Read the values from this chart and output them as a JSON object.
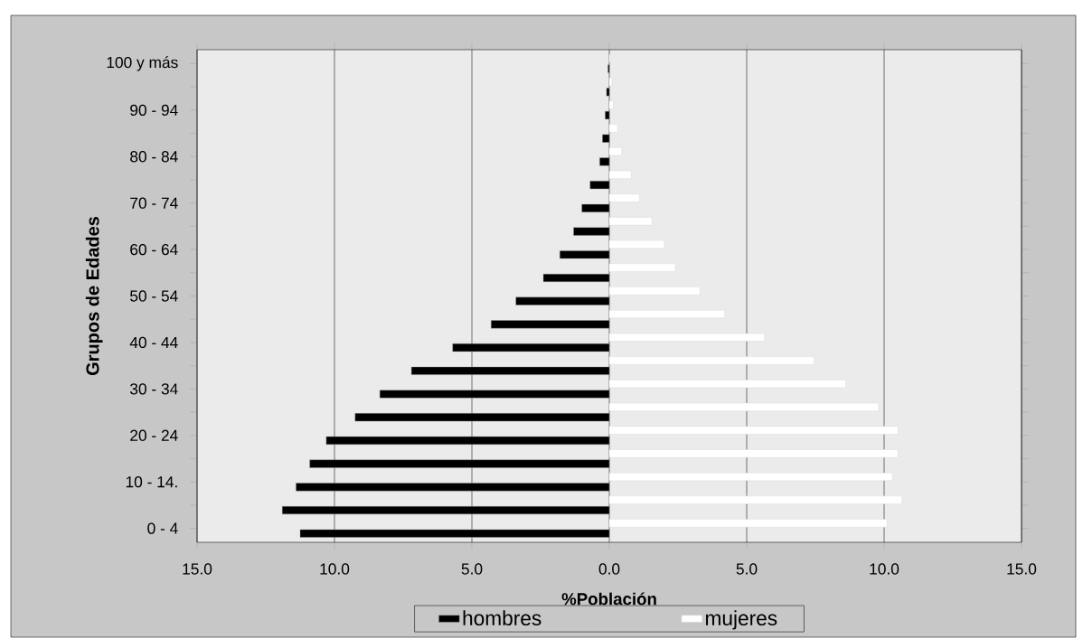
{
  "chart_data": {
    "type": "bar",
    "orientation": "horizontal",
    "xlabel": "%Población",
    "ylabel": "Grupos de Edades",
    "categories": [
      "100 y más",
      null,
      "90 - 94",
      null,
      "80 - 84",
      null,
      "70 - 74",
      null,
      "60 - 64",
      null,
      "50 - 54",
      null,
      "40 - 44",
      null,
      "30 - 34",
      null,
      "20 - 24",
      null,
      "10 - 14.",
      null,
      "0 - 4"
    ],
    "series": [
      {
        "name": "hombres",
        "color": "#000000",
        "values": [
          -0.05,
          -0.1,
          -0.15,
          -0.25,
          -0.35,
          -0.7,
          -1.0,
          -1.3,
          -1.8,
          -2.4,
          -3.4,
          -4.3,
          -5.7,
          -7.2,
          -8.35,
          -9.25,
          -10.3,
          -10.9,
          -11.4,
          -11.9,
          -11.25
        ]
      },
      {
        "name": "mujeres",
        "color": "#ffffff",
        "values": [
          0.05,
          0.1,
          0.15,
          0.3,
          0.45,
          0.8,
          1.1,
          1.55,
          2.0,
          2.4,
          3.3,
          4.2,
          5.65,
          7.45,
          8.6,
          9.8,
          10.5,
          10.5,
          10.3,
          10.65,
          10.1
        ]
      }
    ],
    "xlim": [
      -15,
      15
    ],
    "xticks": [
      {
        "value": -15,
        "label": "15.0"
      },
      {
        "value": -10,
        "label": "10.0"
      },
      {
        "value": -5,
        "label": "5.0"
      },
      {
        "value": 0,
        "label": "0.0"
      },
      {
        "value": 5,
        "label": "5.0"
      },
      {
        "value": 10,
        "label": "10.0"
      },
      {
        "value": 15,
        "label": "15.0"
      }
    ],
    "grid": "x",
    "legend": "bottom"
  }
}
